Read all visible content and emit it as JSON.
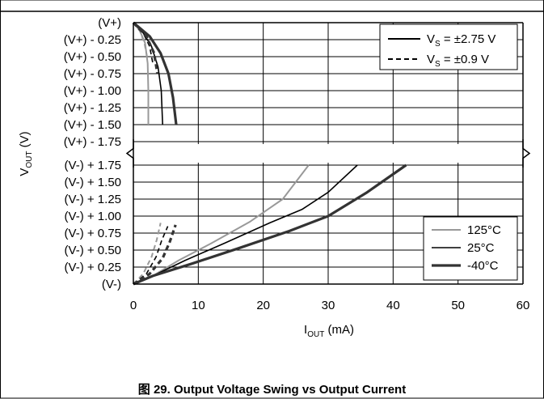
{
  "chart_data": {
    "type": "line",
    "title": "Output Voltage Swing vs Output Current",
    "caption": "图 29. Output Voltage Swing vs Output Current",
    "xlabel": "I",
    "xlabel_sub": "OUT",
    "xlabel_unit": " (mA)",
    "ylabel": "V",
    "ylabel_sub": "OUT",
    "ylabel_unit": " (V)",
    "xlim": [
      0,
      60
    ],
    "x_ticks": [
      0,
      10,
      20,
      30,
      40,
      50,
      60
    ],
    "x_tick_labels": [
      "0",
      "10",
      "20",
      "30",
      "40",
      "50",
      "60"
    ],
    "upper_ticks": [
      0,
      0.25,
      0.5,
      0.75,
      1.0,
      1.25,
      1.5,
      1.75
    ],
    "upper_tick_labels": [
      "(V+)",
      "(V+) - 0.25",
      "(V+) - 0.50",
      "(V+) - 0.75",
      "(V+) - 1.00",
      "(V+) - 1.25",
      "(V+) - 1.50",
      "(V+) - 1.75"
    ],
    "lower_ticks": [
      1.75,
      1.5,
      1.25,
      1.0,
      0.75,
      0.5,
      0.25,
      0
    ],
    "lower_tick_labels": [
      "(V-) + 1.75",
      "(V-) + 1.50",
      "(V-) + 1.25",
      "(V-) + 1.00",
      "(V-) + 0.75",
      "(V-) + 0.50",
      "(V-) + 0.25",
      "(V-)"
    ],
    "axis_break": true,
    "grid": true,
    "legend_supply": {
      "placement": "top-right",
      "entries": [
        {
          "label_prefix": "V",
          "label_sub": "S",
          "label_suffix": " = ±2.75 V",
          "style": "solid"
        },
        {
          "label_prefix": "V",
          "label_sub": "S",
          "label_suffix": " = ±0.9 V",
          "style": "dashed"
        }
      ]
    },
    "legend_temperature": {
      "placement": "bottom-right",
      "entries": [
        {
          "label": "125°C",
          "color": "#999999",
          "width": 2
        },
        {
          "label": "25°C",
          "color": "#000000",
          "width": 1.6
        },
        {
          "label": "-40°C",
          "color": "#333333",
          "width": 3.2
        }
      ]
    },
    "series": [
      {
        "region": "upper",
        "supply": "±2.75 V",
        "temp": "125°C",
        "color": "#999999",
        "width": 2,
        "dashed": false,
        "points": [
          [
            0,
            0
          ],
          [
            1,
            0.12
          ],
          [
            1.8,
            0.3
          ],
          [
            2.2,
            0.6
          ],
          [
            2.3,
            1.0
          ],
          [
            2.3,
            1.5
          ]
        ]
      },
      {
        "region": "upper",
        "supply": "±2.75 V",
        "temp": "25°C",
        "color": "#000000",
        "width": 1.6,
        "dashed": false,
        "points": [
          [
            0,
            0
          ],
          [
            1.5,
            0.15
          ],
          [
            2.8,
            0.35
          ],
          [
            3.8,
            0.65
          ],
          [
            4.3,
            1.0
          ],
          [
            4.5,
            1.5
          ]
        ]
      },
      {
        "region": "upper",
        "supply": "±2.75 V",
        "temp": "-40°C",
        "color": "#333333",
        "width": 3.2,
        "dashed": false,
        "points": [
          [
            0,
            0
          ],
          [
            2.5,
            0.2
          ],
          [
            4.2,
            0.45
          ],
          [
            5.4,
            0.75
          ],
          [
            6.1,
            1.1
          ],
          [
            6.6,
            1.5
          ]
        ]
      },
      {
        "region": "upper",
        "supply": "±0.9 V",
        "temp": "125°C",
        "color": "#999999",
        "width": 2,
        "dashed": true,
        "points": [
          [
            0,
            0
          ],
          [
            1,
            0.12
          ],
          [
            1.7,
            0.3
          ],
          [
            2.1,
            0.5
          ]
        ]
      },
      {
        "region": "upper",
        "supply": "±0.9 V",
        "temp": "25°C",
        "color": "#000000",
        "width": 1.6,
        "dashed": true,
        "points": [
          [
            0,
            0
          ],
          [
            1.5,
            0.15
          ],
          [
            2.5,
            0.35
          ],
          [
            3.0,
            0.6
          ]
        ]
      },
      {
        "region": "upper",
        "supply": "±0.9 V",
        "temp": "-40°C",
        "color": "#333333",
        "width": 3.2,
        "dashed": true,
        "points": [
          [
            0,
            0
          ],
          [
            2,
            0.2
          ],
          [
            3.2,
            0.45
          ],
          [
            3.7,
            0.75
          ]
        ]
      },
      {
        "region": "lower",
        "supply": "±2.75 V",
        "temp": "125°C",
        "color": "#999999",
        "width": 2,
        "dashed": false,
        "points": [
          [
            0,
            0
          ],
          [
            3,
            0.12
          ],
          [
            7,
            0.35
          ],
          [
            12,
            0.6
          ],
          [
            18,
            0.92
          ],
          [
            23,
            1.25
          ],
          [
            27,
            1.75
          ]
        ]
      },
      {
        "region": "lower",
        "supply": "±2.75 V",
        "temp": "25°C",
        "color": "#000000",
        "width": 1.6,
        "dashed": false,
        "points": [
          [
            0,
            0
          ],
          [
            3,
            0.12
          ],
          [
            8,
            0.35
          ],
          [
            14,
            0.6
          ],
          [
            21,
            0.9
          ],
          [
            26,
            1.1
          ],
          [
            30,
            1.35
          ],
          [
            34.5,
            1.75
          ]
        ]
      },
      {
        "region": "lower",
        "supply": "±2.75 V",
        "temp": "-40°C",
        "color": "#333333",
        "width": 3.2,
        "dashed": false,
        "points": [
          [
            0,
            0
          ],
          [
            3,
            0.12
          ],
          [
            9,
            0.3
          ],
          [
            16,
            0.52
          ],
          [
            24,
            0.78
          ],
          [
            30,
            1.0
          ],
          [
            36,
            1.35
          ],
          [
            42,
            1.75
          ]
        ]
      },
      {
        "region": "lower",
        "supply": "±0.9 V",
        "temp": "125°C",
        "color": "#999999",
        "width": 2,
        "dashed": true,
        "points": [
          [
            0,
            0
          ],
          [
            1.5,
            0.15
          ],
          [
            2.8,
            0.4
          ],
          [
            3.6,
            0.65
          ],
          [
            4.2,
            0.9
          ]
        ]
      },
      {
        "region": "lower",
        "supply": "±0.9 V",
        "temp": "25°C",
        "color": "#000000",
        "width": 1.6,
        "dashed": true,
        "points": [
          [
            0,
            0
          ],
          [
            2,
            0.15
          ],
          [
            3.5,
            0.4
          ],
          [
            4.4,
            0.65
          ],
          [
            5.3,
            0.85
          ]
        ]
      },
      {
        "region": "lower",
        "supply": "±0.9 V",
        "temp": "-40°C",
        "color": "#333333",
        "width": 3.2,
        "dashed": true,
        "points": [
          [
            0,
            0
          ],
          [
            2.5,
            0.15
          ],
          [
            4.5,
            0.38
          ],
          [
            5.6,
            0.62
          ],
          [
            6.5,
            0.87
          ]
        ]
      }
    ]
  }
}
